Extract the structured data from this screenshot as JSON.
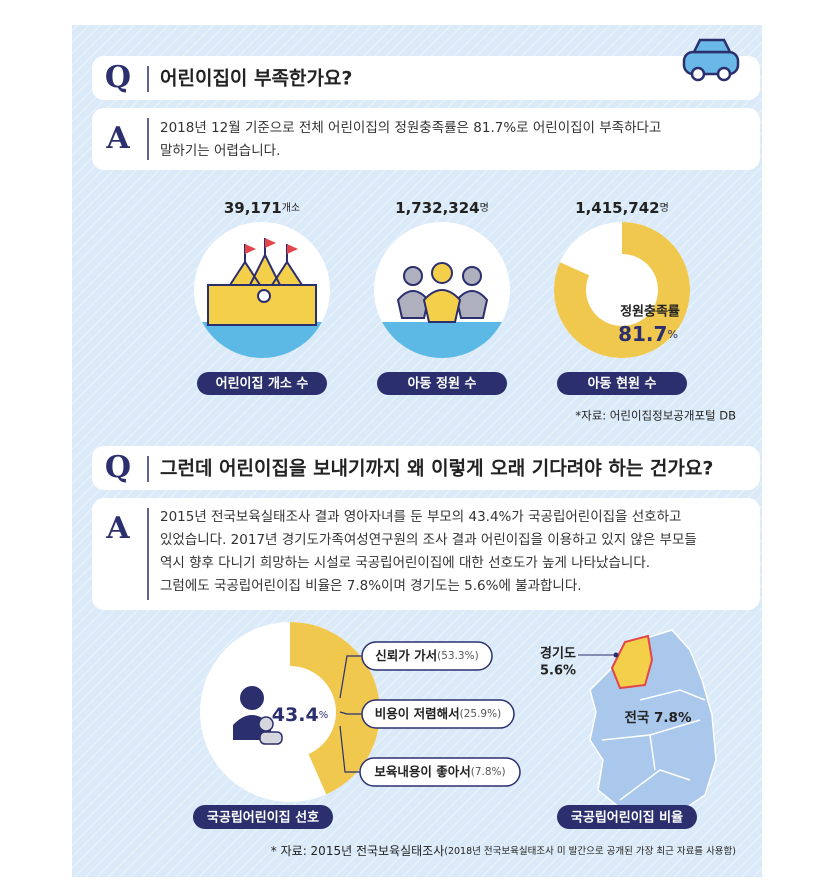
{
  "q_letter": "Q",
  "a_letter": "A",
  "section1": {
    "question": "어린이집이 부족한가요?",
    "answer_lines": [
      "2018년 12월 기준으로 전체 어린이집의 정원충족률은 81.7%로 어린이집이 부족하다고",
      "말하기는 어렵습니다."
    ],
    "stats": [
      {
        "value": "39,171",
        "unit": "개소",
        "label": "어린이집 개소 수"
      },
      {
        "value": "1,732,324",
        "unit": "명",
        "label": "아동 정원 수"
      },
      {
        "value": "1,415,742",
        "unit": "명",
        "label": "아동 현원 수"
      }
    ],
    "rate": {
      "label": "정원충족률",
      "value": 81.7,
      "unit": "%"
    },
    "source": "*자료: 어린이집정보공개포털 DB"
  },
  "section2": {
    "question": "그런데 어린이집을 보내기까지 왜 이렇게 오래 기다려야 하는 건가요?",
    "answer_lines": [
      "2015년 전국보육실태조사 결과 영아자녀를 둔 부모의 43.4%가 국공립어린이집을 선호하고",
      "있었습니다. 2017년 경기도가족여성연구원의 조사 결과 어린이집을 이용하고 있지 않은 부모들",
      "역시 향후 다니기 희망하는 시설로 국공립어린이집에 대한 선호도가 높게 나타났습니다.",
      "그럼에도 국공립어린이집 비율은 7.8%이며 경기도는 5.6%에 불과합니다."
    ],
    "preference": {
      "value": 43.4,
      "unit": "%",
      "label": "국공립어린이집 선호",
      "reasons": [
        {
          "text": "신뢰가 가서",
          "share": "(53.3%)"
        },
        {
          "text": "비용이 저렴해서",
          "share": "(25.9%)"
        },
        {
          "text": "보육내용이 좋아서",
          "share": "(7.8%)"
        }
      ]
    },
    "map": {
      "region": "경기도",
      "region_value": "5.6%",
      "national": "전국 7.8%",
      "label": "국공립어린이집 비율"
    },
    "source": "* 자료: 2015년 전국보육실태조사",
    "source_note": "(2018년 전국보육실태조사 미 발간으로 공개된 가장 최근 자료를 사용함)"
  }
}
